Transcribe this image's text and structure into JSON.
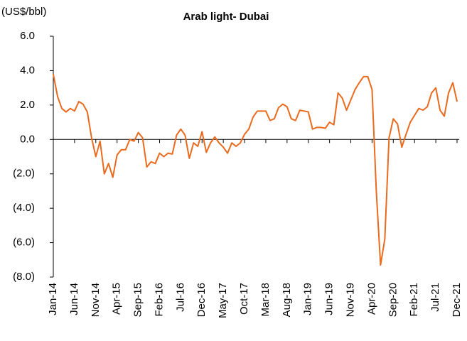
{
  "chart_data": {
    "type": "line",
    "title": "Arab light- Dubai",
    "y_label": "(US$/bbl)",
    "categories": [
      "Jan-14",
      null,
      null,
      null,
      null,
      "Jun-14",
      null,
      null,
      null,
      null,
      "Nov-14",
      null,
      null,
      null,
      null,
      "Apr-15",
      null,
      null,
      null,
      null,
      "Sep-15",
      null,
      null,
      null,
      null,
      "Feb-16",
      null,
      null,
      null,
      null,
      "Jul-16",
      null,
      null,
      null,
      null,
      "Dec-16",
      null,
      null,
      null,
      null,
      "May-17",
      null,
      null,
      null,
      null,
      "Oct-17",
      null,
      null,
      null,
      null,
      "Mar-18",
      null,
      null,
      null,
      null,
      "Aug-18",
      null,
      null,
      null,
      null,
      "Jan-19",
      null,
      null,
      null,
      null,
      "Jun-19",
      null,
      null,
      null,
      null,
      "Nov-19",
      null,
      null,
      null,
      null,
      "Apr-20",
      null,
      null,
      null,
      null,
      "Sep-20",
      null,
      null,
      null,
      null,
      "Feb-21",
      null,
      null,
      null,
      null,
      "Jul-21",
      null,
      null,
      null,
      null,
      "Dec-21"
    ],
    "series": [
      {
        "name": "Arab light- Dubai",
        "color": "#ea6a1e",
        "values": [
          3.8,
          2.5,
          1.8,
          1.6,
          1.8,
          1.65,
          2.2,
          2.05,
          1.6,
          0.1,
          -1.0,
          -0.1,
          -2.0,
          -1.4,
          -2.2,
          -0.9,
          -0.6,
          -0.6,
          0.0,
          -0.1,
          0.4,
          0.1,
          -1.6,
          -1.3,
          -1.4,
          -0.8,
          -1.0,
          -0.8,
          -0.85,
          0.25,
          0.6,
          0.25,
          -1.1,
          -0.2,
          -0.4,
          0.45,
          -0.75,
          -0.2,
          0.15,
          -0.2,
          -0.45,
          -0.8,
          -0.2,
          -0.4,
          -0.2,
          0.3,
          0.6,
          1.3,
          1.65,
          1.65,
          1.65,
          1.1,
          1.2,
          1.85,
          2.05,
          1.9,
          1.2,
          1.1,
          1.7,
          1.65,
          1.6,
          0.6,
          0.7,
          0.7,
          0.65,
          1.0,
          0.85,
          2.7,
          2.4,
          1.7,
          2.3,
          2.9,
          3.3,
          3.65,
          3.65,
          2.9,
          -3.0,
          -7.3,
          -5.8,
          0.1,
          1.2,
          0.9,
          -0.45,
          0.3,
          1.0,
          1.4,
          1.8,
          1.7,
          1.9,
          2.7,
          3.0,
          1.7,
          1.35,
          2.7,
          3.3,
          2.2
        ]
      }
    ],
    "ylim": [
      -8,
      6
    ],
    "yticks": [
      {
        "value": -8,
        "label": "(8.0)"
      },
      {
        "value": -6,
        "label": "(6.0)"
      },
      {
        "value": -4,
        "label": "(4.0)"
      },
      {
        "value": -2,
        "label": "(2.0)"
      },
      {
        "value": 0,
        "label": "0.0"
      },
      {
        "value": 2,
        "label": "2.0"
      },
      {
        "value": 4,
        "label": "4.0"
      },
      {
        "value": 6,
        "label": "6.0"
      }
    ],
    "grid": false
  }
}
